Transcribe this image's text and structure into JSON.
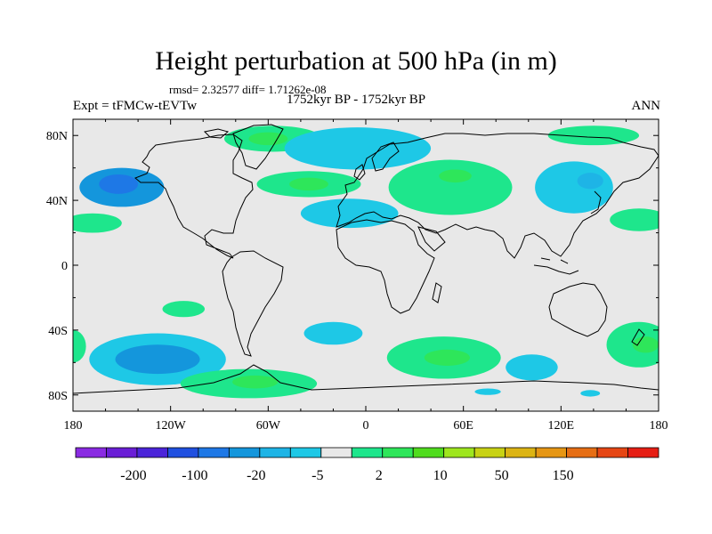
{
  "title": "Height perturbation at 500 hPa (in m)",
  "stats": "rmsd= 2.32577 diff= 1.71262e-08",
  "experiment": "Expt = tFMCw-tEVTw",
  "period": "1752kyr BP - 1752kyr BP",
  "season": "ANN",
  "chart_data": {
    "type": "filled-contour-map",
    "projection": "cylindrical-equidistant",
    "lon_range": [
      -180,
      180
    ],
    "lat_range": [
      -90,
      90
    ],
    "x_ticks": [
      {
        "lon": -180,
        "label": "180"
      },
      {
        "lon": -120,
        "label": "120W"
      },
      {
        "lon": -60,
        "label": "60W"
      },
      {
        "lon": 0,
        "label": "0"
      },
      {
        "lon": 60,
        "label": "60E"
      },
      {
        "lon": 120,
        "label": "120E"
      },
      {
        "lon": 180,
        "label": "180"
      }
    ],
    "y_ticks": [
      {
        "lat": 80,
        "label": "80N"
      },
      {
        "lat": 40,
        "label": "40N"
      },
      {
        "lat": 0,
        "label": "0"
      },
      {
        "lat": -40,
        "label": "40S"
      },
      {
        "lat": -80,
        "label": "80S"
      }
    ],
    "colorbar": {
      "colors": [
        "#8a2be2",
        "#6a1ed6",
        "#4b24d9",
        "#2050e0",
        "#1e78e6",
        "#1496dc",
        "#1eb4e6",
        "#1ec8e6",
        "#e8e8e8",
        "#1ee68c",
        "#2ee65a",
        "#50dc1e",
        "#9ee61e",
        "#c8d214",
        "#dcb414",
        "#e69614",
        "#e66e14",
        "#e64614",
        "#e61e14"
      ],
      "labels": [
        "-200",
        "-100",
        "-20",
        "-5",
        "2",
        "10",
        "50",
        "150"
      ]
    },
    "anomalies": [
      {
        "lon": -150,
        "lat": 48,
        "rx": 26,
        "ry": 12,
        "level": 5
      },
      {
        "lon": -152,
        "lat": 50,
        "rx": 12,
        "ry": 6,
        "level": 4
      },
      {
        "lon": -168,
        "lat": 26,
        "rx": 18,
        "ry": 6,
        "level": 9
      },
      {
        "lon": -57,
        "lat": 78,
        "rx": 30,
        "ry": 8,
        "level": 9
      },
      {
        "lon": -60,
        "lat": 78,
        "rx": 12,
        "ry": 4,
        "level": 10
      },
      {
        "lon": -35,
        "lat": 50,
        "rx": 32,
        "ry": 8,
        "level": 9
      },
      {
        "lon": -35,
        "lat": 50,
        "rx": 12,
        "ry": 4,
        "level": 10
      },
      {
        "lon": -5,
        "lat": 72,
        "rx": 45,
        "ry": 13,
        "level": 7
      },
      {
        "lon": -10,
        "lat": 32,
        "rx": 30,
        "ry": 9,
        "level": 7
      },
      {
        "lon": 52,
        "lat": 48,
        "rx": 38,
        "ry": 17,
        "level": 9
      },
      {
        "lon": 55,
        "lat": 55,
        "rx": 10,
        "ry": 4,
        "level": 10
      },
      {
        "lon": 140,
        "lat": 80,
        "rx": 28,
        "ry": 6,
        "level": 9
      },
      {
        "lon": 128,
        "lat": 48,
        "rx": 24,
        "ry": 16,
        "level": 7
      },
      {
        "lon": 138,
        "lat": 52,
        "rx": 8,
        "ry": 5,
        "level": 6
      },
      {
        "lon": 168,
        "lat": 28,
        "rx": 18,
        "ry": 7,
        "level": 9
      },
      {
        "lon": -128,
        "lat": -58,
        "rx": 42,
        "ry": 16,
        "level": 7
      },
      {
        "lon": -128,
        "lat": -58,
        "rx": 26,
        "ry": 9,
        "level": 5
      },
      {
        "lon": -112,
        "lat": -27,
        "rx": 13,
        "ry": 5,
        "level": 9
      },
      {
        "lon": -72,
        "lat": -73,
        "rx": 42,
        "ry": 9,
        "level": 9
      },
      {
        "lon": -68,
        "lat": -72,
        "rx": 14,
        "ry": 4,
        "level": 10
      },
      {
        "lon": -20,
        "lat": -42,
        "rx": 18,
        "ry": 7,
        "level": 7
      },
      {
        "lon": 48,
        "lat": -57,
        "rx": 35,
        "ry": 13,
        "level": 9
      },
      {
        "lon": 50,
        "lat": -57,
        "rx": 14,
        "ry": 5,
        "level": 10
      },
      {
        "lon": 102,
        "lat": -63,
        "rx": 16,
        "ry": 8,
        "level": 7
      },
      {
        "lon": 168,
        "lat": -49,
        "rx": 20,
        "ry": 14,
        "level": 9
      },
      {
        "lon": 172,
        "lat": -49,
        "rx": 8,
        "ry": 5,
        "level": 10
      },
      {
        "lon": -180,
        "lat": -50,
        "rx": 8,
        "ry": 10,
        "level": 9
      },
      {
        "lon": 75,
        "lat": -78,
        "rx": 8,
        "ry": 2,
        "level": 7
      },
      {
        "lon": 138,
        "lat": -79,
        "rx": 6,
        "ry": 2,
        "level": 7
      }
    ]
  }
}
